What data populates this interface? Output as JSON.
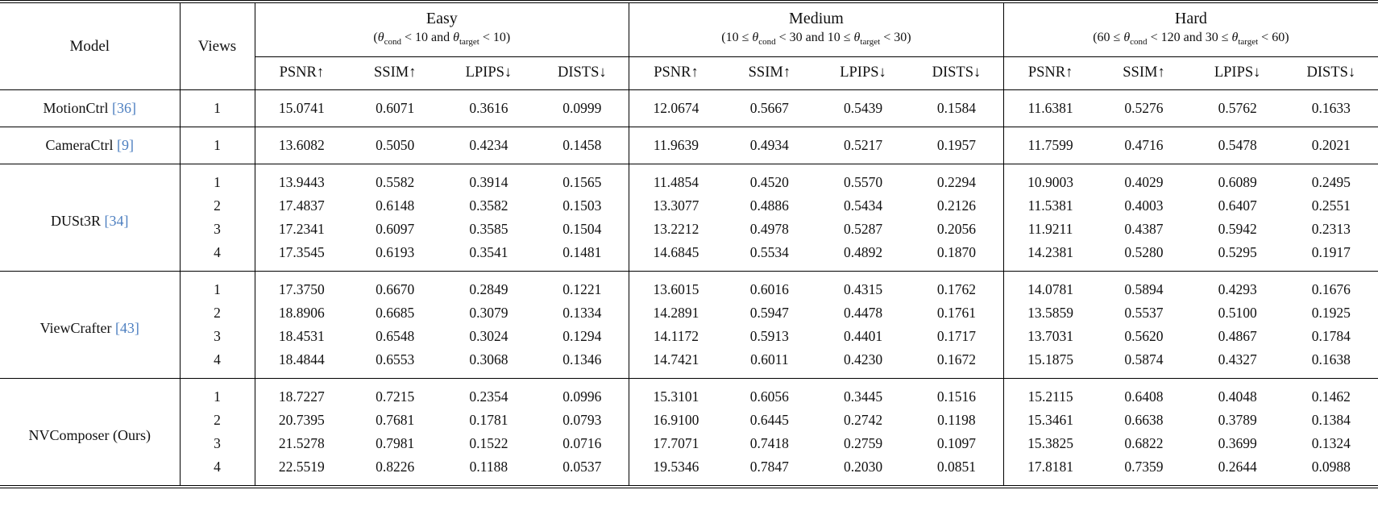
{
  "table": {
    "citation_color": "#4d7fc0",
    "header": {
      "model": "Model",
      "views": "Views",
      "groups": [
        {
          "label": "Easy",
          "sub": [
            "(",
            "θ",
            "cond",
            " < 10 and ",
            "θ",
            "target",
            " < 10)"
          ]
        },
        {
          "label": "Medium",
          "sub": [
            "(10 ≤ ",
            "θ",
            "cond",
            " < 30 and 10 ≤ ",
            "θ",
            "target",
            " < 30)"
          ]
        },
        {
          "label": "Hard",
          "sub": [
            "(60 ≤ ",
            "θ",
            "cond",
            " < 120 and 30 ≤ ",
            "θ",
            "target",
            " < 60)"
          ]
        }
      ],
      "metrics": [
        "PSNR↑",
        "SSIM↑",
        "LPIPS↓",
        "DISTS↓"
      ]
    },
    "model_groups": [
      {
        "model": "MotionCtrl",
        "citation": "[36]",
        "rows": [
          {
            "views": "1",
            "values": [
              "15.0741",
              "0.6071",
              "0.3616",
              "0.0999",
              "12.0674",
              "0.5667",
              "0.5439",
              "0.1584",
              "11.6381",
              "0.5276",
              "0.5762",
              "0.1633"
            ]
          }
        ]
      },
      {
        "model": "CameraCtrl",
        "citation": "[9]",
        "rows": [
          {
            "views": "1",
            "values": [
              "13.6082",
              "0.5050",
              "0.4234",
              "0.1458",
              "11.9639",
              "0.4934",
              "0.5217",
              "0.1957",
              "11.7599",
              "0.4716",
              "0.5478",
              "0.2021"
            ]
          }
        ]
      },
      {
        "model": "DUSt3R",
        "citation": "[34]",
        "rows": [
          {
            "views": "1",
            "values": [
              "13.9443",
              "0.5582",
              "0.3914",
              "0.1565",
              "11.4854",
              "0.4520",
              "0.5570",
              "0.2294",
              "10.9003",
              "0.4029",
              "0.6089",
              "0.2495"
            ]
          },
          {
            "views": "2",
            "values": [
              "17.4837",
              "0.6148",
              "0.3582",
              "0.1503",
              "13.3077",
              "0.4886",
              "0.5434",
              "0.2126",
              "11.5381",
              "0.4003",
              "0.6407",
              "0.2551"
            ]
          },
          {
            "views": "3",
            "values": [
              "17.2341",
              "0.6097",
              "0.3585",
              "0.1504",
              "13.2212",
              "0.4978",
              "0.5287",
              "0.2056",
              "11.9211",
              "0.4387",
              "0.5942",
              "0.2313"
            ]
          },
          {
            "views": "4",
            "values": [
              "17.3545",
              "0.6193",
              "0.3541",
              "0.1481",
              "14.6845",
              "0.5534",
              "0.4892",
              "0.1870",
              "14.2381",
              "0.5280",
              "0.5295",
              "0.1917"
            ]
          }
        ]
      },
      {
        "model": "ViewCrafter",
        "citation": "[43]",
        "rows": [
          {
            "views": "1",
            "values": [
              "17.3750",
              "0.6670",
              "0.2849",
              "0.1221",
              "13.6015",
              "0.6016",
              "0.4315",
              "0.1762",
              "14.0781",
              "0.5894",
              "0.4293",
              "0.1676"
            ]
          },
          {
            "views": "2",
            "values": [
              "18.8906",
              "0.6685",
              "0.3079",
              "0.1334",
              "14.2891",
              "0.5947",
              "0.4478",
              "0.1761",
              "13.5859",
              "0.5537",
              "0.5100",
              "0.1925"
            ]
          },
          {
            "views": "3",
            "values": [
              "18.4531",
              "0.6548",
              "0.3024",
              "0.1294",
              "14.1172",
              "0.5913",
              "0.4401",
              "0.1717",
              "13.7031",
              "0.5620",
              "0.4867",
              "0.1784"
            ]
          },
          {
            "views": "4",
            "values": [
              "18.4844",
              "0.6553",
              "0.3068",
              "0.1346",
              "14.7421",
              "0.6011",
              "0.4230",
              "0.1672",
              "15.1875",
              "0.5874",
              "0.4327",
              "0.1638"
            ]
          }
        ]
      },
      {
        "model": "NVComposer (Ours)",
        "citation": "",
        "rows": [
          {
            "views": "1",
            "values": [
              "18.7227",
              "0.7215",
              "0.2354",
              "0.0996",
              "15.3101",
              "0.6056",
              "0.3445",
              "0.1516",
              "15.2115",
              "0.6408",
              "0.4048",
              "0.1462"
            ]
          },
          {
            "views": "2",
            "values": [
              "20.7395",
              "0.7681",
              "0.1781",
              "0.0793",
              "16.9100",
              "0.6445",
              "0.2742",
              "0.1198",
              "15.3461",
              "0.6638",
              "0.3789",
              "0.1384"
            ]
          },
          {
            "views": "3",
            "values": [
              "21.5278",
              "0.7981",
              "0.1522",
              "0.0716",
              "17.7071",
              "0.7418",
              "0.2759",
              "0.1097",
              "15.3825",
              "0.6822",
              "0.3699",
              "0.1324"
            ]
          },
          {
            "views": "4",
            "values": [
              "22.5519",
              "0.8226",
              "0.1188",
              "0.0537",
              "19.5346",
              "0.7847",
              "0.2030",
              "0.0851",
              "17.8181",
              "0.7359",
              "0.2644",
              "0.0988"
            ]
          }
        ]
      }
    ]
  }
}
